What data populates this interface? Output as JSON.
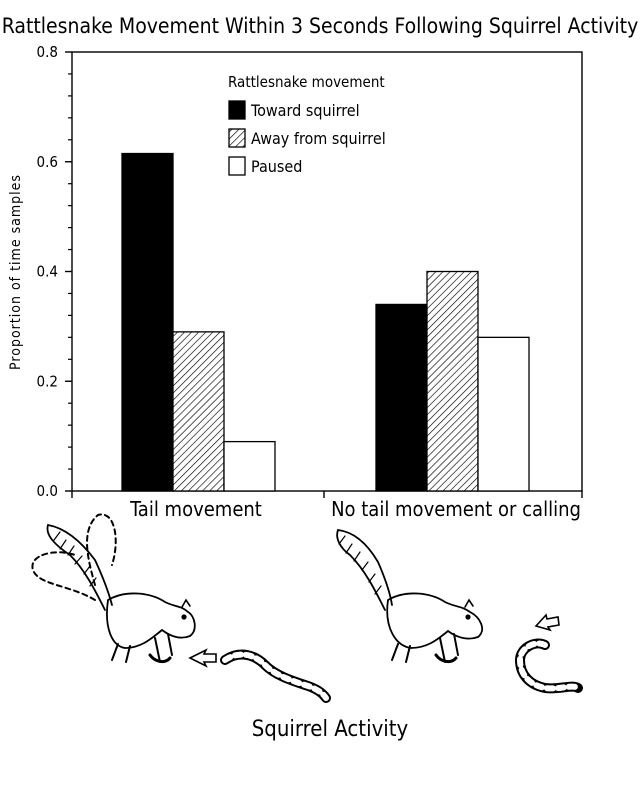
{
  "chart_data": {
    "type": "bar",
    "title": "Rattlesnake Movement Within 3 Seconds Following Squirrel Activity",
    "ylabel": "Proportion of  time samples",
    "xlabel": "Squirrel Activity",
    "categories": [
      "Tail movement",
      "No tail movement or calling"
    ],
    "ylim": [
      0,
      0.8
    ],
    "yticks": [
      "0.0",
      "0.2",
      "0.4",
      "0.6",
      "0.8"
    ],
    "legend_title": "Rattlesnake movement",
    "legend_placement": "top-center",
    "grid": false,
    "series": [
      {
        "name": "Toward squirrel",
        "values": [
          0.615,
          0.34
        ],
        "fill": "#000000",
        "pattern": "solid"
      },
      {
        "name": "Away from squirrel",
        "values": [
          0.29,
          0.4
        ],
        "fill": "#ffffff",
        "pattern": "hatched"
      },
      {
        "name": "Paused",
        "values": [
          0.09,
          0.28
        ],
        "fill": "#ffffff",
        "pattern": "open"
      }
    ]
  },
  "illustrations": [
    "squirrel-with-tail-flagging-and-snake",
    "squirrel-still-and-snake"
  ]
}
